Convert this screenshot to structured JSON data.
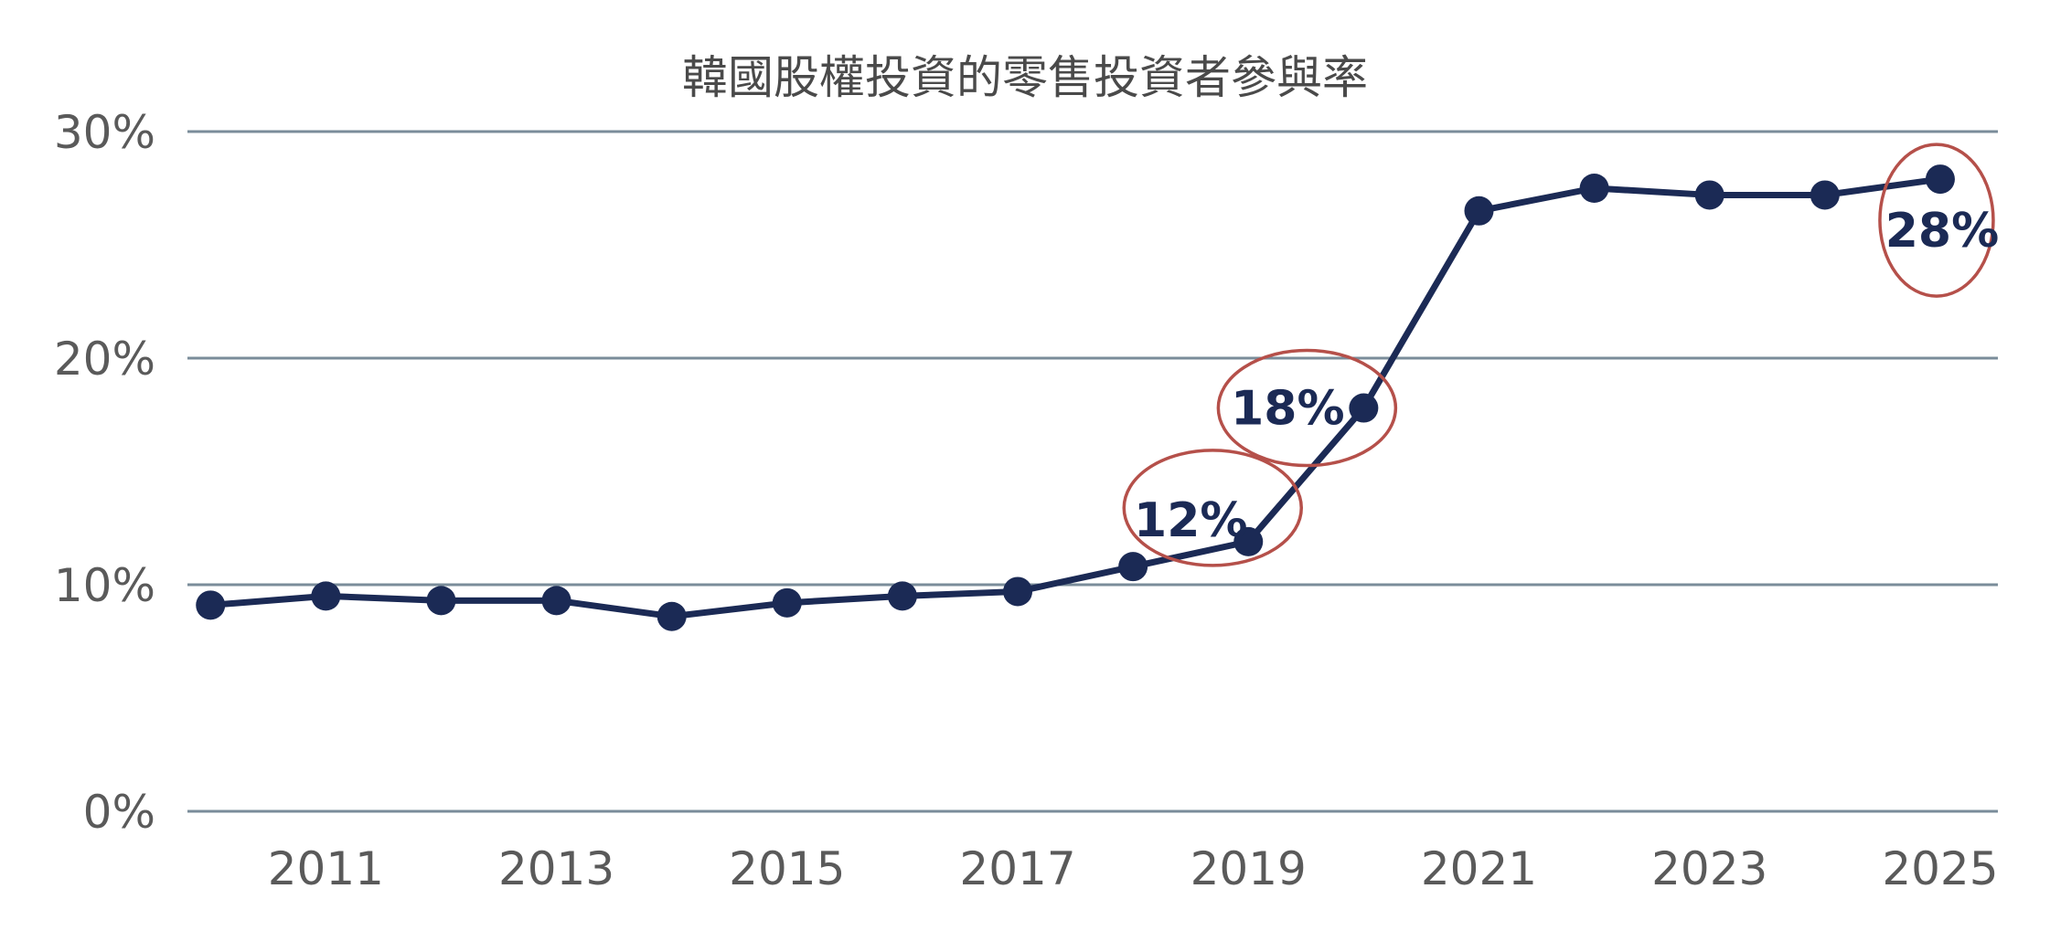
{
  "chart_data": {
    "type": "line",
    "title": "韓國股權投資的零售投資者參與率",
    "xlabel": "",
    "ylabel": "",
    "ylim": [
      0,
      30
    ],
    "y_ticks": [
      "0%",
      "10%",
      "20%",
      "30%"
    ],
    "y_tick_values": [
      0,
      10,
      20,
      30
    ],
    "x_tick_labels": [
      "2011",
      "2013",
      "2015",
      "2017",
      "2019",
      "2021",
      "2023",
      "2025"
    ],
    "x_tick_values": [
      2011,
      2013,
      2015,
      2017,
      2019,
      2021,
      2023,
      2025
    ],
    "xlim": [
      2009.8,
      2025.5
    ],
    "grid": true,
    "legend": "none",
    "series": [
      {
        "x": [
          2010,
          2011,
          2012,
          2013,
          2014,
          2015,
          2016,
          2017,
          2018,
          2019,
          2020,
          2021,
          2022,
          2023,
          2024,
          2025
        ],
        "values": [
          9.1,
          9.5,
          9.3,
          9.3,
          8.6,
          9.2,
          9.5,
          9.7,
          10.8,
          11.9,
          17.8,
          26.5,
          27.5,
          27.2,
          27.2,
          27.9
        ],
        "color": "#1b2a55"
      }
    ],
    "annotations": [
      {
        "x": 2019,
        "y": 11.9,
        "label": "12%",
        "label_pos": "upper-left"
      },
      {
        "x": 2020,
        "y": 17.8,
        "label": "18%",
        "label_pos": "left"
      },
      {
        "x": 2025,
        "y": 27.9,
        "label": "28%",
        "label_pos": "below"
      }
    ],
    "colors": {
      "line": "#1b2a55",
      "grid": "#7a8c9a",
      "circle": "#b5504a",
      "label": "#1b2a55"
    }
  }
}
